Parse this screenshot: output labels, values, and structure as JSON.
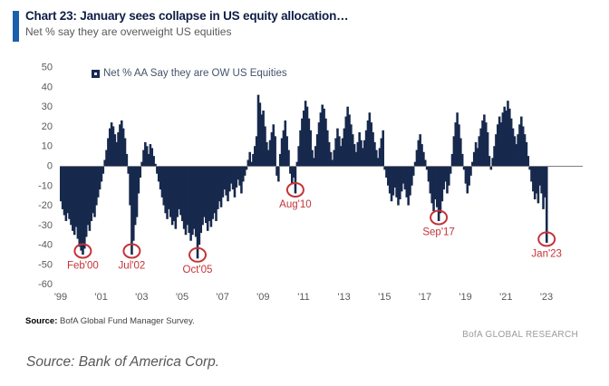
{
  "header": {
    "title": "Chart 23: January sees collapse in US equity allocation…",
    "subtitle": "Net % say they are overweight US equities"
  },
  "legend": {
    "label": "Net % AA Say they are OW US Equities"
  },
  "chart_data": {
    "type": "bar",
    "title": "Net % AA Say they are OW US Equities",
    "xlabel": "",
    "ylabel": "Net %",
    "ylim": [
      -60,
      50
    ],
    "grid": false,
    "legend_position": "top",
    "frequency": "monthly",
    "start": "1999-01",
    "end": "2023-01",
    "y_ticks": [
      50,
      40,
      30,
      20,
      10,
      0,
      -10,
      -20,
      -30,
      -40,
      -50,
      -60
    ],
    "x_ticks": [
      "'99",
      "'01",
      "'03",
      "'05",
      "'07",
      "'09",
      "'11",
      "'13",
      "'15",
      "'17",
      "'19",
      "'21",
      "'23"
    ],
    "values": [
      -18,
      -22,
      -25,
      -28,
      -24,
      -27,
      -30,
      -33,
      -35,
      -31,
      -37,
      -41,
      -43,
      -45,
      -42,
      -36,
      -30,
      -33,
      -28,
      -24,
      -26,
      -20,
      -16,
      -12,
      -8,
      -4,
      3,
      8,
      14,
      19,
      22,
      20,
      16,
      12,
      17,
      21,
      23,
      19,
      14,
      6,
      -4,
      -20,
      -45,
      -38,
      -30,
      -26,
      -14,
      -6,
      2,
      8,
      12,
      10,
      6,
      11,
      9,
      5,
      1,
      -4,
      -8,
      -12,
      -16,
      -20,
      -24,
      -27,
      -22,
      -26,
      -30,
      -28,
      -32,
      -26,
      -22,
      -25,
      -28,
      -32,
      -35,
      -30,
      -34,
      -38,
      -35,
      -32,
      -36,
      -47,
      -40,
      -34,
      -30,
      -26,
      -29,
      -33,
      -28,
      -31,
      -27,
      -24,
      -28,
      -22,
      -18,
      -21,
      -16,
      -12,
      -15,
      -18,
      -13,
      -9,
      -12,
      -16,
      -11,
      -7,
      -10,
      -14,
      -8,
      -5,
      -2,
      3,
      7,
      2,
      6,
      10,
      15,
      36,
      32,
      26,
      28,
      20,
      12,
      8,
      13,
      17,
      21,
      15,
      -5,
      -8,
      6,
      14,
      18,
      23,
      15,
      8,
      -4,
      -9,
      -6,
      -14,
      2,
      10,
      18,
      24,
      28,
      33,
      30,
      24,
      18,
      8,
      4,
      10,
      16,
      22,
      27,
      31,
      29,
      24,
      18,
      12,
      7,
      3,
      8,
      14,
      19,
      15,
      10,
      14,
      19,
      25,
      30,
      26,
      21,
      16,
      11,
      7,
      12,
      17,
      13,
      9,
      13,
      18,
      23,
      27,
      22,
      17,
      12,
      8,
      4,
      9,
      14,
      18,
      -2,
      -6,
      -10,
      -14,
      -18,
      -15,
      -11,
      -16,
      -20,
      -17,
      -13,
      -9,
      -12,
      -16,
      -20,
      -15,
      -10,
      -5,
      2,
      8,
      13,
      16,
      11,
      7,
      3,
      -2,
      -8,
      -14,
      -19,
      -23,
      -17,
      -21,
      -28,
      -24,
      -18,
      -12,
      -8,
      -14,
      -10,
      -4,
      6,
      15,
      22,
      27,
      21,
      14,
      6,
      -2,
      -9,
      -14,
      -10,
      -5,
      2,
      7,
      12,
      9,
      15,
      19,
      23,
      26,
      22,
      17,
      5,
      -2,
      4,
      10,
      16,
      21,
      25,
      22,
      27,
      30,
      28,
      33,
      29,
      24,
      19,
      15,
      11,
      16,
      21,
      25,
      20,
      16,
      12,
      5,
      -2,
      -8,
      -13,
      -17,
      -14,
      -19,
      -10,
      -14,
      -22,
      -16,
      -39
    ],
    "annotations": [
      {
        "label": "Feb'00",
        "month_index": 13,
        "value": -45
      },
      {
        "label": "Jul'02",
        "month_index": 42,
        "value": -45
      },
      {
        "label": "Oct'05",
        "month_index": 81,
        "value": -47
      },
      {
        "label": "Aug'10",
        "month_index": 139,
        "value": -14
      },
      {
        "label": "Sep'17",
        "month_index": 224,
        "value": -28
      },
      {
        "label": "Jan'23",
        "month_index": 288,
        "value": -39
      }
    ]
  },
  "source": {
    "label": "Source:",
    "text": " BofA Global Fund Manager Survey."
  },
  "branding": "BofA GLOBAL RESEARCH",
  "caption": "Source: Bank of America Corp.",
  "colors": {
    "bar": "#17294d",
    "accent": "#1c5fac",
    "annotation": "#c43338",
    "zero_line": "#7f7f7f",
    "axis_text": "#595959",
    "title_text": "#0f1e45",
    "legend_text": "#44546a"
  }
}
